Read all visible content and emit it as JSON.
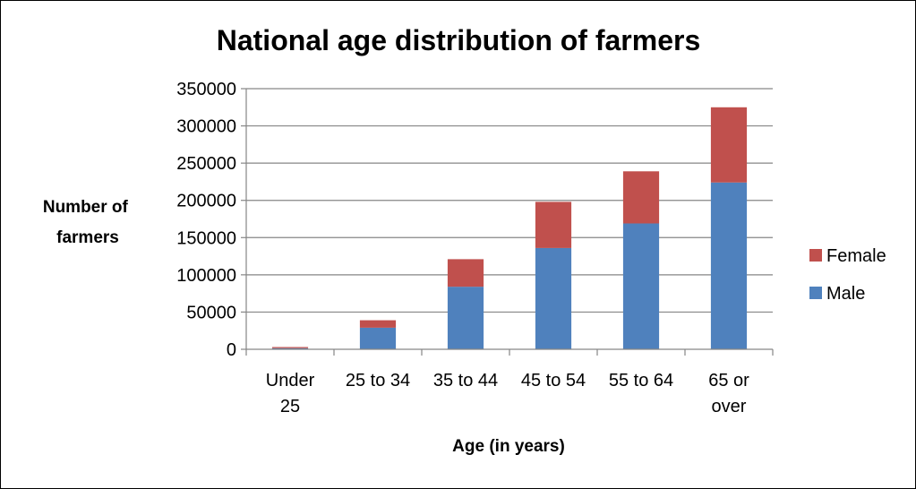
{
  "chart_data": {
    "type": "bar",
    "stacked": true,
    "title": "National age distribution of farmers",
    "xlabel": "Age (in years)",
    "ylabel": [
      "Number of",
      "farmers"
    ],
    "categories": [
      [
        "Under",
        "25"
      ],
      [
        "25 to 34"
      ],
      [
        "35 to 44"
      ],
      [
        "45 to 54"
      ],
      [
        "55 to 64"
      ],
      [
        "65 or",
        "over"
      ]
    ],
    "series": [
      {
        "name": "Male",
        "color": "#4F81BD",
        "values": [
          1500,
          29000,
          84000,
          136000,
          169000,
          224000
        ]
      },
      {
        "name": "Female",
        "color": "#C0504D",
        "values": [
          1500,
          10000,
          37000,
          62000,
          70000,
          101000
        ]
      }
    ],
    "ylim": [
      0,
      350000
    ],
    "yticks": [
      "0",
      "50000",
      "100000",
      "150000",
      "200000",
      "250000",
      "300000",
      "350000"
    ],
    "grid": true,
    "legend_position": "right"
  }
}
